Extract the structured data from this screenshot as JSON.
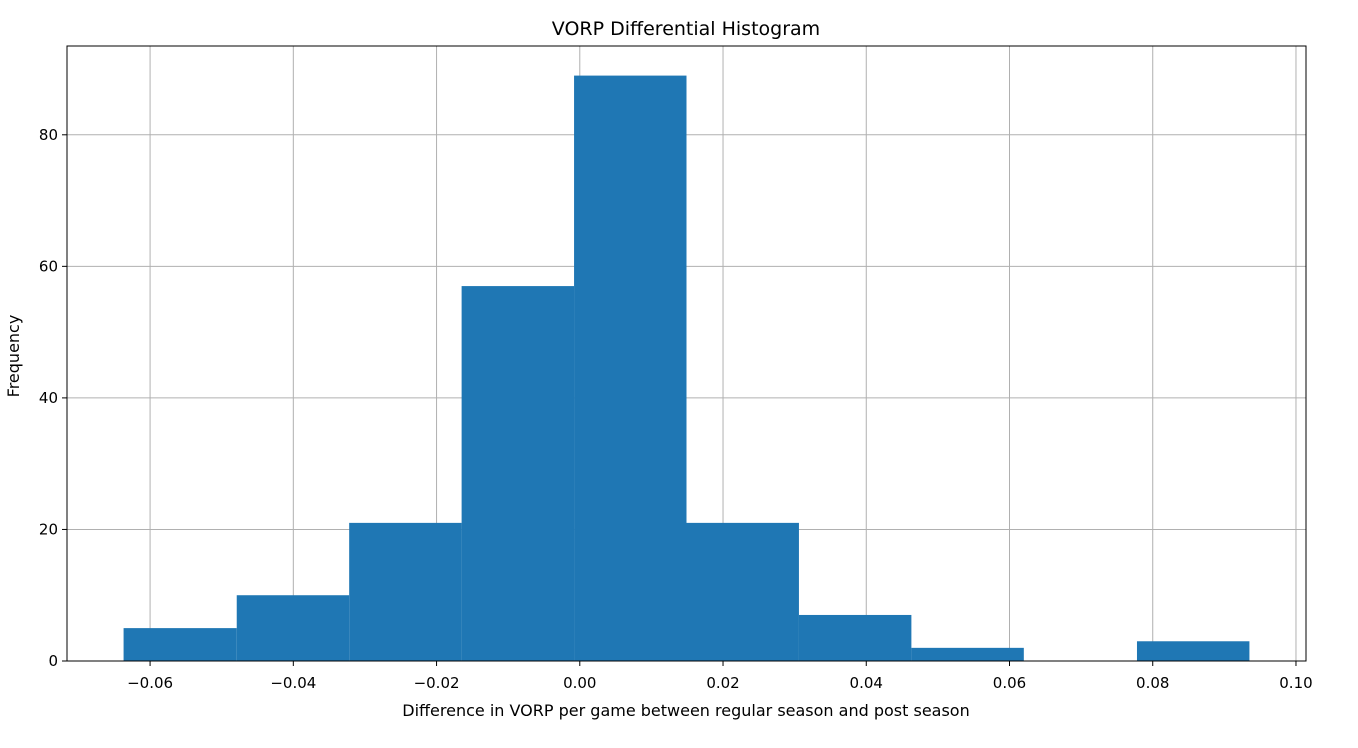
{
  "chart_data": {
    "type": "bar",
    "subtype": "histogram",
    "title": "VORP Differential Histogram",
    "xlabel": "Difference in VORP per game between regular season and post season",
    "ylabel": "Frequency",
    "bin_edges": [
      -0.0637,
      -0.0479,
      -0.0322,
      -0.0165,
      -0.0008,
      0.0149,
      0.0306,
      0.0463,
      0.062,
      0.0778,
      0.0935
    ],
    "values": [
      5,
      10,
      21,
      57,
      89,
      21,
      7,
      2,
      0,
      3
    ],
    "xlim": [
      -0.0716,
      0.1014
    ],
    "ylim": [
      0,
      93.5
    ],
    "x_ticks": [
      -0.06,
      -0.04,
      -0.02,
      0.0,
      0.02,
      0.04,
      0.06,
      0.08,
      0.1
    ],
    "x_tick_labels": [
      "−0.06",
      "−0.04",
      "−0.02",
      "0.00",
      "0.02",
      "0.04",
      "0.06",
      "0.08",
      "0.10"
    ],
    "y_ticks": [
      0,
      20,
      40,
      60,
      80
    ],
    "y_tick_labels": [
      "0",
      "20",
      "40",
      "60",
      "80"
    ],
    "grid": true,
    "colors": {
      "bar": "#1f77b4",
      "grid": "#b0b0b0",
      "axis": "#000000"
    }
  }
}
